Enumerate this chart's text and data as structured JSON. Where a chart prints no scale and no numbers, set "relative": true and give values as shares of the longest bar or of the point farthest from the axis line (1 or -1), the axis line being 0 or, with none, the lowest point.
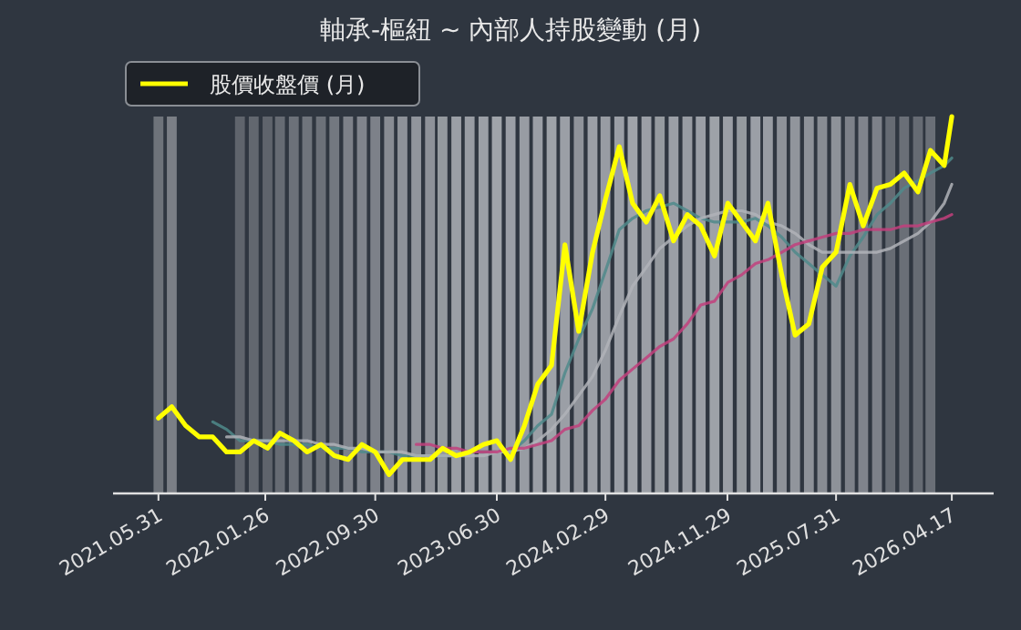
{
  "chart_data": {
    "type": "line",
    "title": "軸承-樞紐 ~ 內部人持股變動 (月)",
    "relative": true,
    "tick_labels": "x",
    "legend": "top left",
    "x": [
      "2021-05-31",
      "2021-06-30",
      "2021-07-31",
      "2021-08-31",
      "2021-09-30",
      "2021-10-31",
      "2021-11-30",
      "2021-12-31",
      "2022-01-31",
      "2022-02-28",
      "2022-03-31",
      "2022-04-30",
      "2022-05-31",
      "2022-06-30",
      "2022-07-31",
      "2022-08-31",
      "2022-09-30",
      "2022-10-31",
      "2022-11-30",
      "2022-12-31",
      "2023-01-31",
      "2023-02-28",
      "2023-03-31",
      "2023-04-30",
      "2023-05-31",
      "2023-06-30",
      "2023-07-31",
      "2023-08-31",
      "2023-09-30",
      "2023-10-31",
      "2023-11-30",
      "2023-12-31",
      "2024-01-31",
      "2024-02-29",
      "2024-03-31",
      "2024-04-30",
      "2024-05-31",
      "2024-06-30",
      "2024-07-31",
      "2024-08-31",
      "2024-09-30",
      "2024-10-31",
      "2024-11-30",
      "2024-12-31",
      "2025-01-31",
      "2025-02-28",
      "2025-03-31",
      "2025-04-30",
      "2025-05-31",
      "2025-06-30",
      "2025-07-31",
      "2025-08-31",
      "2025-09-30",
      "2025-10-31",
      "2025-11-30",
      "2025-12-31",
      "2026-01-31",
      "2026-02-28",
      "2026-03-31",
      "2026-04-17"
    ],
    "xlim": [
      "2021-02-18",
      "2026-07-20"
    ],
    "xticks": [
      {
        "value": "2021-05-31",
        "label": "2021.05.31"
      },
      {
        "value": "2022-01-26",
        "label": "2022.01.26"
      },
      {
        "value": "2022-09-30",
        "label": "2022.09.30"
      },
      {
        "value": "2023-06-30",
        "label": "2023.06.30"
      },
      {
        "value": "2024-02-29",
        "label": "2024.02.29"
      },
      {
        "value": "2024-11-29",
        "label": "2024.11.29"
      },
      {
        "value": "2025-07-31",
        "label": "2025.07.31"
      },
      {
        "value": "2026-04-17",
        "label": "2026.04.17"
      }
    ],
    "series": [
      {
        "type": "bar",
        "values": [
          1,
          1,
          null,
          null,
          null,
          null,
          1,
          1,
          1,
          1,
          1,
          1,
          1,
          1,
          1,
          1,
          1,
          1,
          1,
          1,
          1,
          1,
          1,
          1,
          1,
          1,
          1,
          1,
          1,
          1,
          1,
          1,
          1,
          1,
          1,
          1,
          1,
          1,
          1,
          1,
          1,
          1,
          1,
          1,
          1,
          1,
          1,
          1,
          1,
          1,
          1,
          1,
          1,
          1,
          1,
          1,
          1,
          1,
          null,
          null
        ],
        "colors": [
          "#6e737a",
          "#7b7f86",
          null,
          null,
          null,
          null,
          "#5f646c",
          "#62676f",
          "#5f646c",
          "#666b73",
          "#6c7179",
          "#6f747c",
          "#6c7179",
          "#737880",
          "#7d8189",
          "#80848c",
          "#7d8189",
          "#888c93",
          "#8e9299",
          "#91959c",
          "#8e9299",
          "#959a9f",
          "#9b9fa6",
          "#989ca3",
          "#9b9fa6",
          "#a0a4aa",
          "#9b9fa6",
          "#989ca3",
          "#9b9fa6",
          "#9ea2a8",
          "#9b9fa6",
          "#8f939a",
          "#9b9fa6",
          "#989ca3",
          "#9b9fa6",
          "#a0a4aa",
          "#9b9fa6",
          "#959a9f",
          "#9b9fa6",
          "#989ca3",
          "#9b9fa6",
          "#9ea2a8",
          "#9b9fa6",
          "#959a9f",
          "#9b9fa6",
          "#989ca3",
          "#8e9299",
          "#91959c",
          "#8e9299",
          "#888c93",
          "#8e9299",
          "#7d8189",
          "#80848c",
          "#7d8189",
          "#666b73",
          "#6a6f77",
          "#666b73",
          "#6a6f77",
          null,
          null
        ]
      },
      {
        "color": "#4f8a8b",
        "values": [
          null,
          null,
          null,
          null,
          0.19,
          0.17,
          0.14,
          0.14,
          0.14,
          0.13,
          0.13,
          0.13,
          0.12,
          0.12,
          0.12,
          0.11,
          0.11,
          0.11,
          0.1,
          0.1,
          0.1,
          0.1,
          0.1,
          0.11,
          0.11,
          0.11,
          0.11,
          0.14,
          0.18,
          0.21,
          0.32,
          0.41,
          0.49,
          0.59,
          0.7,
          0.73,
          0.75,
          0.76,
          0.77,
          0.75,
          0.73,
          0.72,
          0.72,
          0.72,
          0.73,
          0.71,
          0.68,
          0.64,
          0.61,
          0.58,
          0.55,
          0.63,
          0.68,
          0.74,
          0.77,
          0.81,
          0.83,
          0.85,
          0.87,
          0.89
        ]
      },
      {
        "color": "#b0b3b8",
        "values": [
          null,
          null,
          null,
          null,
          null,
          0.15,
          0.15,
          0.14,
          0.14,
          0.14,
          0.14,
          0.14,
          0.13,
          0.13,
          0.12,
          0.12,
          0.11,
          0.11,
          0.11,
          0.1,
          0.1,
          0.1,
          0.1,
          0.1,
          0.1,
          0.11,
          0.11,
          0.12,
          0.14,
          0.17,
          0.21,
          0.26,
          0.31,
          0.38,
          0.47,
          0.55,
          0.6,
          0.65,
          0.68,
          0.71,
          0.73,
          0.74,
          0.75,
          0.75,
          0.74,
          0.72,
          0.71,
          0.69,
          0.66,
          0.64,
          0.64,
          0.64,
          0.64,
          0.64,
          0.65,
          0.67,
          0.69,
          0.72,
          0.77,
          0.82
        ]
      },
      {
        "color": "#c2407d",
        "values": [
          null,
          null,
          null,
          null,
          null,
          null,
          null,
          null,
          null,
          null,
          null,
          null,
          null,
          null,
          null,
          null,
          null,
          null,
          null,
          0.13,
          0.13,
          0.12,
          0.12,
          0.11,
          0.11,
          0.11,
          0.12,
          0.12,
          0.13,
          0.14,
          0.17,
          0.18,
          0.22,
          0.25,
          0.3,
          0.33,
          0.36,
          0.39,
          0.41,
          0.45,
          0.5,
          0.51,
          0.56,
          0.58,
          0.61,
          0.62,
          0.64,
          0.66,
          0.67,
          0.68,
          0.69,
          0.69,
          0.7,
          0.7,
          0.7,
          0.71,
          0.71,
          0.72,
          0.73,
          0.74
        ]
      },
      {
        "name": "股價收盤價 (月)",
        "color": "#ffff00",
        "values": [
          0.2,
          0.23,
          0.18,
          0.15,
          0.15,
          0.11,
          0.11,
          0.14,
          0.12,
          0.16,
          0.14,
          0.11,
          0.13,
          0.1,
          0.09,
          0.13,
          0.11,
          0.05,
          0.09,
          0.09,
          0.09,
          0.12,
          0.1,
          0.11,
          0.13,
          0.14,
          0.09,
          0.18,
          0.29,
          0.34,
          0.66,
          0.43,
          0.64,
          0.78,
          0.92,
          0.77,
          0.72,
          0.79,
          0.67,
          0.74,
          0.71,
          0.63,
          0.77,
          0.72,
          0.67,
          0.77,
          0.58,
          0.42,
          0.45,
          0.6,
          0.64,
          0.82,
          0.71,
          0.81,
          0.82,
          0.85,
          0.8,
          0.91,
          0.87,
          1
        ]
      }
    ]
  }
}
